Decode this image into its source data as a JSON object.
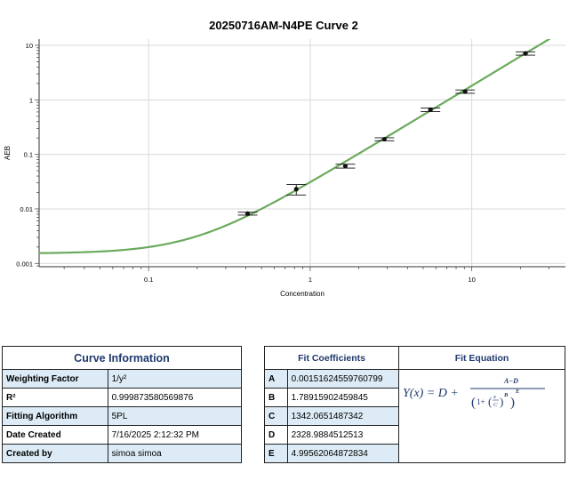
{
  "chart_data": {
    "type": "scatter",
    "title": "20250716AM-N4PE Curve 2",
    "xlabel": "Concentration",
    "ylabel": "AEB",
    "x_scale": "log",
    "y_scale": "log",
    "xlim": [
      0.021,
      38
    ],
    "ylim": [
      0.00087,
      13
    ],
    "x_ticks": [
      {
        "value": 0.1,
        "label": "0.1"
      },
      {
        "value": 1,
        "label": "1"
      },
      {
        "value": 10,
        "label": "10"
      }
    ],
    "y_ticks": [
      {
        "value": 0.001,
        "label": "0.001"
      },
      {
        "value": 0.01,
        "label": "0.01"
      },
      {
        "value": 0.1,
        "label": "0.1"
      },
      {
        "value": 1,
        "label": "1"
      },
      {
        "value": 10,
        "label": "10"
      }
    ],
    "grid": true,
    "series": [
      {
        "color": "#6aaa5c",
        "points": [
          {
            "x": 0.41,
            "y": 0.0082,
            "err": 0.0005
          },
          {
            "x": 0.82,
            "y": 0.023,
            "err": 0.005
          },
          {
            "x": 1.65,
            "y": 0.061,
            "err": 0.005
          },
          {
            "x": 2.88,
            "y": 0.19,
            "err": 0.012
          },
          {
            "x": 5.55,
            "y": 0.66,
            "err": 0.05
          },
          {
            "x": 9.1,
            "y": 1.42,
            "err": 0.1
          },
          {
            "x": 21.5,
            "y": 7.1,
            "err": 0.5
          }
        ]
      }
    ],
    "fit": {
      "model": "5PL",
      "A": 0.00151624559760799,
      "B": 1.78915902459845,
      "C": 1342.0651487342,
      "D": 2328.9884512513,
      "E": 4.99562064872834
    }
  },
  "curve_info": {
    "title": "Curve Information",
    "rows": [
      {
        "label": "Weighting Factor",
        "value": "1/y²"
      },
      {
        "label": "R²",
        "value": "0.999873580569876"
      },
      {
        "label": "Fitting Algorithm",
        "value": "5PL"
      },
      {
        "label": "Date Created",
        "value": "7/16/2025 2:12:32 PM"
      },
      {
        "label": "Created by",
        "value": "simoa simoa"
      }
    ]
  },
  "fit_coefficients": {
    "title": "Fit Coefficients",
    "equation_title": "Fit Equation",
    "rows": [
      {
        "key": "A",
        "value": "0.00151624559760799"
      },
      {
        "key": "B",
        "value": "1.78915902459845"
      },
      {
        "key": "C",
        "value": "1342.0651487342"
      },
      {
        "key": "D",
        "value": "2328.9884512513"
      },
      {
        "key": "E",
        "value": "4.99562064872834"
      }
    ]
  }
}
